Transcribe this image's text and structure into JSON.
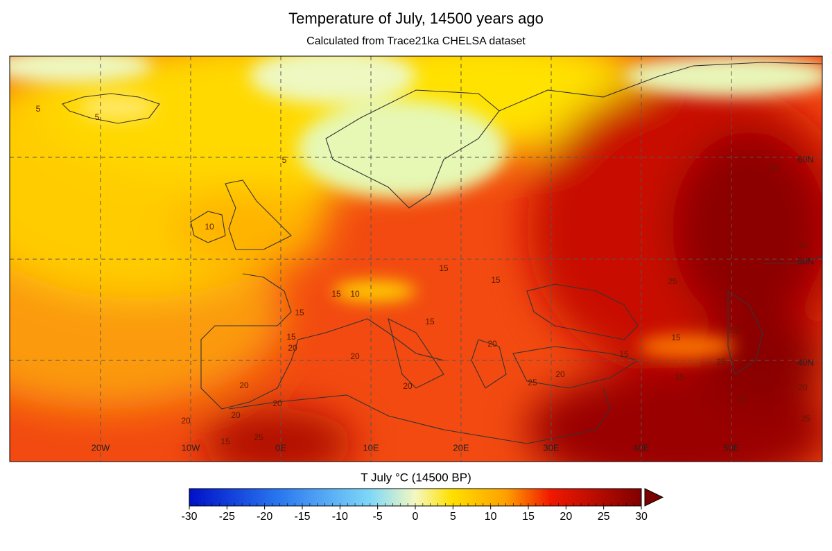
{
  "title": "Temperature of July, 14500 years ago",
  "subtitle": "Calculated from Trace21ka CHELSA dataset",
  "map": {
    "lon_labels": [
      "20W",
      "10W",
      "0E",
      "10E",
      "20E",
      "30E",
      "40E",
      "50E"
    ],
    "lat_labels": [
      "60N",
      "50N",
      "40N"
    ],
    "contour_labels": [
      5,
      5,
      5,
      10,
      15,
      15,
      15,
      10,
      15,
      15,
      20,
      20,
      20,
      20,
      20,
      15,
      25,
      15,
      20,
      20,
      20,
      25,
      20,
      15,
      25,
      25,
      25,
      15,
      15,
      25,
      25,
      15,
      25,
      20
    ]
  },
  "colorbar": {
    "label": "T July °C (14500 BP)",
    "range": [
      -30,
      30
    ],
    "ticks": [
      -30,
      -25,
      -20,
      -15,
      -10,
      -5,
      0,
      5,
      10,
      15,
      20,
      25,
      30
    ]
  }
}
